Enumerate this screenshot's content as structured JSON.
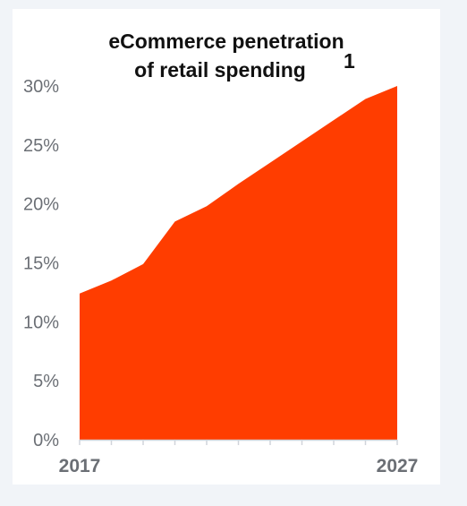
{
  "chart_data": {
    "type": "area",
    "title_line1": "eCommerce penetration",
    "title_line2": "of retail spending",
    "title_footnote": "1",
    "x": [
      2017,
      2018,
      2019,
      2020,
      2021,
      2022,
      2023,
      2024,
      2025,
      2026,
      2027
    ],
    "series": [
      {
        "values": [
          12.4,
          13.5,
          14.9,
          18.5,
          19.8,
          21.7,
          23.5,
          25.3,
          27.1,
          28.9,
          30.0
        ]
      }
    ],
    "x_tick_labels": [
      {
        "year": 2017,
        "label": "2017"
      },
      {
        "year": 2027,
        "label": "2027"
      }
    ],
    "y_tick_labels": [
      "0%",
      "5%",
      "10%",
      "15%",
      "20%",
      "25%",
      "30%"
    ],
    "xlim": [
      2017,
      2027
    ],
    "ylim": [
      0,
      30
    ],
    "grid": false,
    "fill_color": "#ff3d00",
    "axis_color": "#d0d4da",
    "title_color": "#111111",
    "tick_color": "#6b6f75"
  }
}
